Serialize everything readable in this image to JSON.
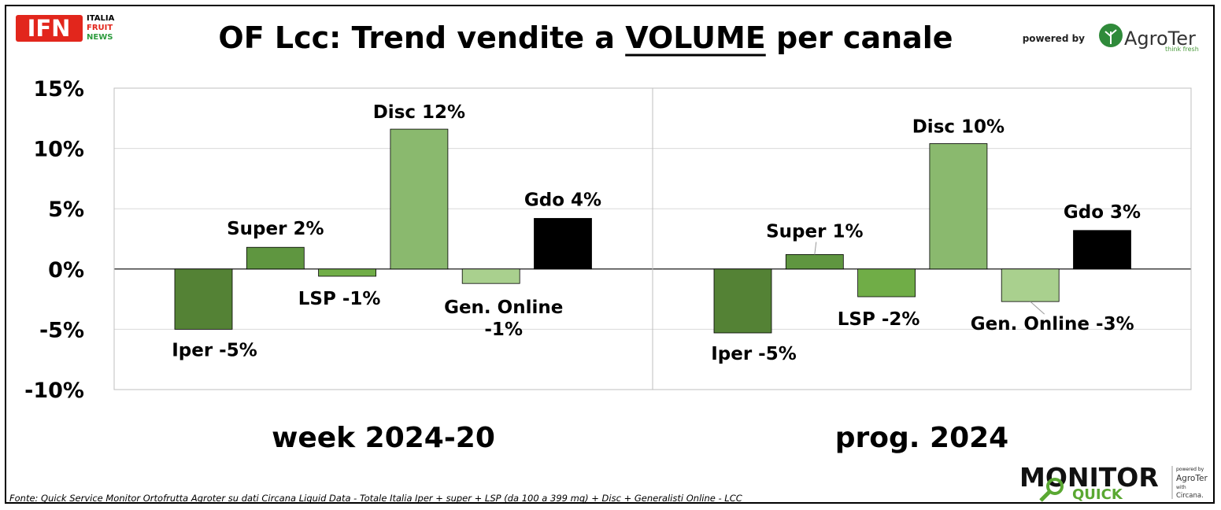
{
  "header": {
    "title_prefix": "OF Lcc: Trend vendite a ",
    "title_emph": "VOLUME",
    "title_suffix": " per canale",
    "ifn_logo_text": "IFN",
    "ifn_sub": [
      "ITALIA",
      "FRUIT",
      "NEWS"
    ],
    "powered_by": "powered by",
    "agroter_name": "AgroTer",
    "agroter_tag": "think fresh"
  },
  "footer": {
    "source": "Fonte: Quick Service Monitor Ortofrutta Agroter su dati Circana Liquid Data - Totale Italia Iper + super + LSP (da 100 a 399 mq) + Disc + Generalisti Online - LCC",
    "monitor_text": "MONITOR",
    "quick_text": "QUICK",
    "powered_small": "powered by",
    "agroter_small": "AgroTer",
    "with_small": "with",
    "circana_small": "Circana."
  },
  "colors": {
    "Iper": "#548235",
    "Super": "#5f9640",
    "LSP": "#70ad47",
    "Disc": "#8ab96e",
    "Gen. Online": "#a9d08e",
    "Gdo": "#000000",
    "ifn_red": "#e2261c",
    "ifn_green": "#2e9c3f",
    "monitor_green": "#5aa832"
  },
  "chart_data": {
    "type": "bar",
    "ylim": [
      -10,
      15
    ],
    "yticks": [
      "15%",
      "10%",
      "5%",
      "0%",
      "-5%",
      "-10%"
    ],
    "ytick_values": [
      15,
      10,
      5,
      0,
      -5,
      -10
    ],
    "grid": "horizontal",
    "categories": [
      "Iper",
      "Super",
      "LSP",
      "Disc",
      "Gen. Online",
      "Gdo"
    ],
    "groups": [
      {
        "name": "week 2024-20",
        "values": [
          -5.0,
          1.8,
          -0.6,
          11.6,
          -1.2,
          4.2
        ],
        "labels": [
          "Iper -5%",
          "Super 2%",
          "LSP -1%",
          "Disc 12%",
          "Gen. Online\n-1%",
          "Gdo 4%"
        ]
      },
      {
        "name": "prog. 2024",
        "values": [
          -5.3,
          1.2,
          -2.3,
          10.4,
          -2.7,
          3.2
        ],
        "labels": [
          "Iper -5%",
          "Super 1%",
          "LSP -2%",
          "Disc 10%",
          "Gen. Online -3%",
          "Gdo 3%"
        ]
      }
    ]
  }
}
